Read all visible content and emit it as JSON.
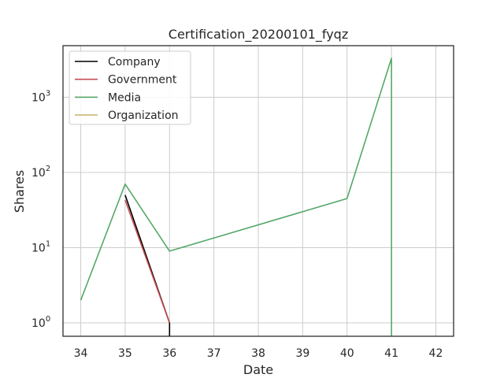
{
  "chart_data": {
    "type": "line",
    "title": "Certification_20200101_fyqz",
    "xlabel": "Date",
    "ylabel": "Shares",
    "xlim": [
      33.6,
      42.4
    ],
    "ylim": [
      0.66,
      5000
    ],
    "yscale": "log",
    "grid": true,
    "legend_position": "top-left",
    "x_ticks": [
      34,
      35,
      36,
      37,
      38,
      39,
      40,
      41,
      42
    ],
    "x_tick_labels": [
      "34",
      "35",
      "36",
      "37",
      "38",
      "39",
      "40",
      "41",
      "42"
    ],
    "y_ticks": [
      1,
      10,
      100,
      1000
    ],
    "y_tick_labels": [
      {
        "base": "10",
        "exp": "0"
      },
      {
        "base": "10",
        "exp": "1"
      },
      {
        "base": "10",
        "exp": "2"
      },
      {
        "base": "10",
        "exp": "3"
      }
    ],
    "series": [
      {
        "name": "Company",
        "color": "#000000",
        "x": [
          35,
          36,
          36
        ],
        "y": [
          50,
          1,
          0.66
        ]
      },
      {
        "name": "Government",
        "color": "#c44e52",
        "x": [
          35,
          36
        ],
        "y": [
          43,
          1
        ]
      },
      {
        "name": "Media",
        "color": "#55a868",
        "x": [
          34,
          35,
          36,
          40,
          41,
          41
        ],
        "y": [
          2,
          70,
          9,
          45,
          3300,
          0.66
        ]
      },
      {
        "name": "Organization",
        "color": "#ccb974",
        "x": [],
        "y": []
      }
    ]
  }
}
